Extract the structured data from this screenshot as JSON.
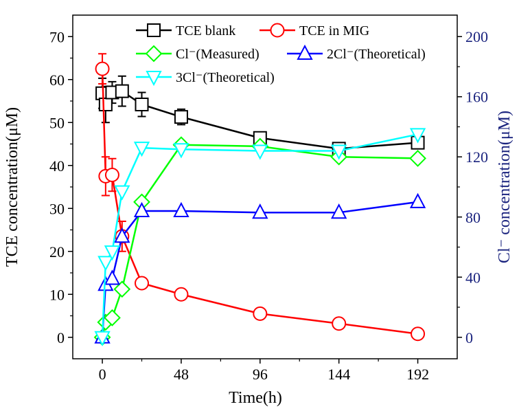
{
  "chart_data": {
    "type": "line",
    "title": "",
    "xlabel": "Time(h)",
    "ylabel_left": "TCE concentration(μM)",
    "ylabel_right": "Cl⁻ concentration(μM)",
    "xlim": [
      -18,
      216
    ],
    "ylim_left": [
      -5,
      75
    ],
    "ylim_right": [
      -14.28,
      214.28
    ],
    "xticks": [
      0,
      48,
      96,
      144,
      192
    ],
    "yticks_left": [
      0,
      10,
      20,
      30,
      40,
      50,
      60,
      70
    ],
    "yticks_right": [
      0,
      40,
      80,
      120,
      160,
      200
    ],
    "grid": false,
    "legend_position": "top",
    "series": [
      {
        "name": "TCE blank",
        "legend_label": "TCE blank",
        "axis": "left",
        "color": "#000000",
        "marker": "square",
        "x": [
          0,
          2,
          6,
          12,
          24,
          48,
          96,
          144,
          192
        ],
        "y": [
          56.8,
          54.2,
          57.0,
          57.3,
          54.2,
          51.3,
          46.4,
          43.9,
          45.3
        ],
        "err": [
          3.5,
          4.2,
          2.5,
          3.5,
          2.8,
          1.8,
          0.8,
          0.8,
          0.6
        ]
      },
      {
        "name": "TCE in MIG",
        "legend_label": "TCE in MIG",
        "axis": "left",
        "color": "#ff0000",
        "marker": "circle",
        "x": [
          0,
          2,
          6,
          12,
          24,
          48,
          96,
          144,
          192
        ],
        "y": [
          62.5,
          37.5,
          37.8,
          23.5,
          12.6,
          10.0,
          5.5,
          3.2,
          0.8
        ],
        "err": [
          3.5,
          4.5,
          3.8,
          3.5,
          0.6,
          0.5,
          0.6,
          0.5,
          0.5
        ]
      },
      {
        "name": "Cl⁻(Measured)",
        "legend_label": "Cl⁻(Measured)",
        "axis": "right",
        "color": "#00ff00",
        "marker": "diamond",
        "x": [
          0,
          2,
          6,
          12,
          24,
          48,
          96,
          144,
          192
        ],
        "y": [
          0,
          10,
          13,
          32,
          90,
          128,
          127,
          120,
          119
        ],
        "err": [
          3,
          2,
          2,
          2,
          2,
          2,
          2,
          2,
          2
        ]
      },
      {
        "name": "2Cl⁻(Theoretical)",
        "legend_label": "2Cl⁻(Theoretical)",
        "axis": "right",
        "color": "#0000ff",
        "marker": "triangle-up",
        "x": [
          0,
          2,
          6,
          12,
          24,
          48,
          96,
          144,
          192
        ],
        "y": [
          0,
          35,
          39,
          67,
          84,
          84,
          83,
          83,
          90
        ],
        "err": []
      },
      {
        "name": "3Cl⁻(Theoretical)",
        "legend_label": "3Cl⁻(Theoretical)",
        "axis": "right",
        "color": "#00ffff",
        "marker": "triangle-down",
        "x": [
          0,
          2,
          6,
          12,
          24,
          48,
          96,
          144,
          192
        ],
        "y": [
          0,
          50,
          57,
          97,
          126,
          125,
          124,
          124,
          135
        ],
        "err": []
      }
    ]
  }
}
